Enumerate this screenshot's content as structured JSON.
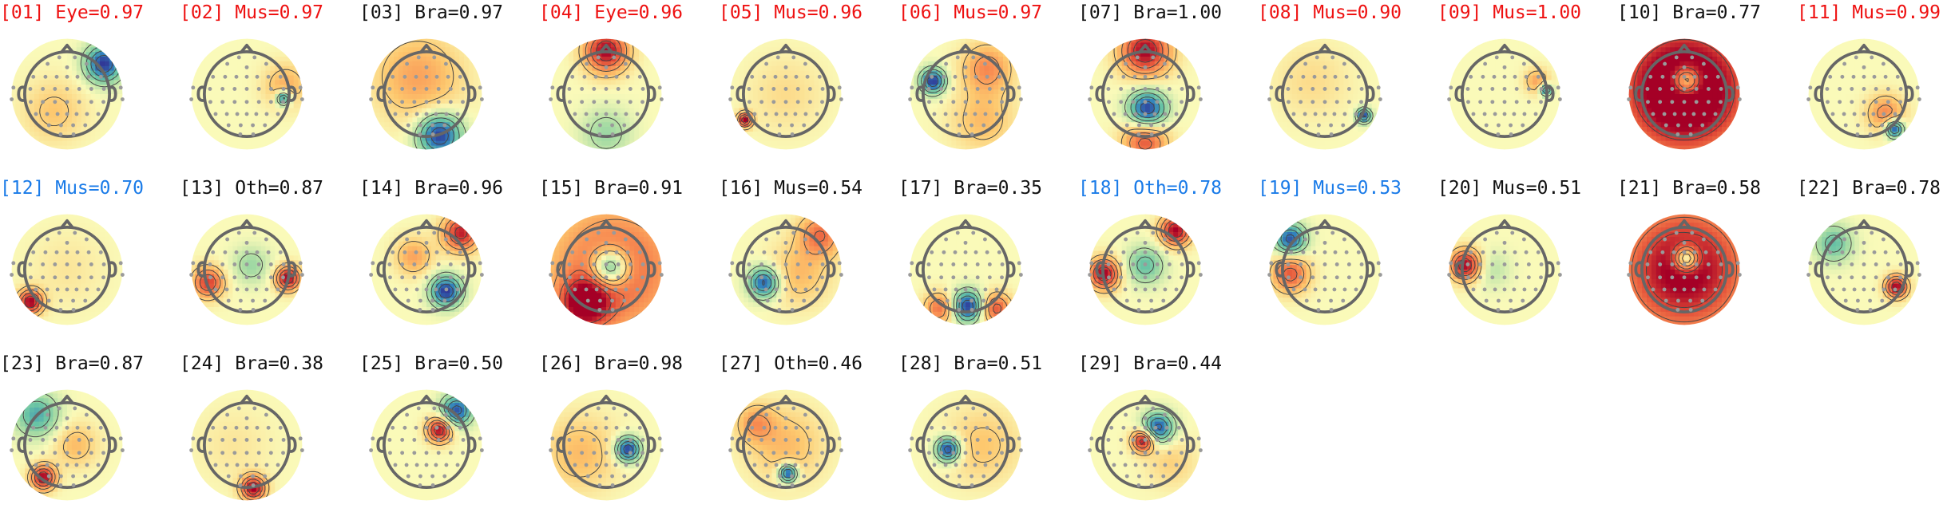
{
  "figure": {
    "components": [
      {
        "label": "[01] Eye=0.97",
        "color": "red",
        "blobs": [
          [
            0.85,
            -0.7,
            0.3,
            -1
          ],
          [
            -0.3,
            0.4,
            0.5,
            0.25
          ]
        ]
      },
      {
        "label": "[02] Mus=0.97",
        "color": "red",
        "blobs": [
          [
            0.85,
            0.1,
            0.12,
            -0.9
          ],
          [
            0.9,
            -0.2,
            0.35,
            0.35
          ]
        ]
      },
      {
        "label": "[03] Bra=0.97",
        "color": "black",
        "blobs": [
          [
            0.3,
            0.95,
            0.35,
            -1
          ],
          [
            -0.2,
            -0.4,
            0.7,
            0.4
          ]
        ]
      },
      {
        "label": "[04] Eye=0.96",
        "color": "red",
        "blobs": [
          [
            0,
            -1,
            0.35,
            1
          ],
          [
            0,
            0.9,
            0.4,
            -0.3
          ]
        ]
      },
      {
        "label": "[05] Mus=0.96",
        "color": "red",
        "blobs": [
          [
            -0.95,
            0.6,
            0.12,
            1
          ],
          [
            0,
            0,
            0.6,
            0.15
          ]
        ]
      },
      {
        "label": "[06] Mus=0.97",
        "color": "red",
        "blobs": [
          [
            -0.75,
            -0.3,
            0.2,
            -1
          ],
          [
            0.5,
            -0.6,
            0.4,
            0.5
          ],
          [
            0.4,
            0.6,
            0.5,
            0.3
          ]
        ]
      },
      {
        "label": "[07] Bra=1.00",
        "color": "black",
        "blobs": [
          [
            0.05,
            0.35,
            0.3,
            -1
          ],
          [
            0,
            -1,
            0.4,
            1
          ],
          [
            0,
            1.1,
            0.35,
            0.7
          ]
        ]
      },
      {
        "label": "[08] Mus=0.90",
        "color": "red",
        "blobs": [
          [
            0.9,
            0.5,
            0.12,
            -0.9
          ],
          [
            -0.3,
            -0.3,
            0.6,
            0.15
          ]
        ]
      },
      {
        "label": "[09] Mus=1.00",
        "color": "red",
        "blobs": [
          [
            0.95,
            -0.1,
            0.1,
            -0.8
          ],
          [
            0.75,
            -0.3,
            0.2,
            0.4
          ]
        ]
      },
      {
        "label": "[10] Bra=0.77",
        "color": "black",
        "blobs": [
          [
            0.05,
            -0.3,
            0.25,
            -1
          ],
          [
            0,
            -0.1,
            1.1,
            1.4
          ]
        ]
      },
      {
        "label": "[11] Mus=0.99",
        "color": "red",
        "blobs": [
          [
            0.7,
            0.8,
            0.15,
            -1
          ],
          [
            0.5,
            0.45,
            0.3,
            0.5
          ]
        ]
      },
      {
        "label": "[12] Mus=0.70",
        "color": "blue",
        "blobs": [
          [
            -0.85,
            0.75,
            0.2,
            1
          ],
          [
            0,
            0,
            0.6,
            0.1
          ]
        ]
      },
      {
        "label": "[13] Oth=0.87",
        "color": "black",
        "blobs": [
          [
            0.95,
            0.2,
            0.2,
            1
          ],
          [
            -0.9,
            0.3,
            0.25,
            0.8
          ],
          [
            0.1,
            -0.1,
            0.3,
            -0.3
          ]
        ]
      },
      {
        "label": "[14] Bra=0.96",
        "color": "black",
        "blobs": [
          [
            0.45,
            0.5,
            0.25,
            -1
          ],
          [
            0.8,
            -0.85,
            0.3,
            0.9
          ],
          [
            -0.3,
            -0.3,
            0.3,
            0.4
          ]
        ]
      },
      {
        "label": "[15] Bra=0.91",
        "color": "black",
        "blobs": [
          [
            0.1,
            -0.05,
            0.3,
            -1
          ],
          [
            -0.5,
            0.8,
            0.4,
            0.9
          ],
          [
            0.2,
            0,
            1.1,
            0.7
          ]
        ]
      },
      {
        "label": "[16] Mus=0.54",
        "color": "black",
        "blobs": [
          [
            -0.5,
            0.3,
            0.25,
            -0.9
          ],
          [
            0.8,
            -0.8,
            0.35,
            0.6
          ],
          [
            0.3,
            0.1,
            0.5,
            0.3
          ]
        ]
      },
      {
        "label": "[17] Bra=0.35",
        "color": "black",
        "blobs": [
          [
            0.05,
            0.85,
            0.25,
            -1
          ],
          [
            -0.6,
            0.9,
            0.25,
            0.6
          ],
          [
            0.7,
            0.9,
            0.25,
            0.7
          ]
        ]
      },
      {
        "label": "[18] Oth=0.78",
        "color": "blue",
        "blobs": [
          [
            -0.95,
            0.1,
            0.25,
            1
          ],
          [
            0.7,
            -0.9,
            0.25,
            1
          ],
          [
            0,
            -0.1,
            0.3,
            -0.5
          ]
        ]
      },
      {
        "label": "[19] Mus=0.53",
        "color": "blue",
        "blobs": [
          [
            -0.8,
            -0.7,
            0.25,
            -0.9
          ],
          [
            -0.8,
            0.1,
            0.3,
            0.7
          ]
        ]
      },
      {
        "label": "[20] Mus=0.51",
        "color": "black",
        "blobs": [
          [
            -0.9,
            -0.1,
            0.25,
            1
          ],
          [
            -0.3,
            0,
            0.3,
            -0.2
          ]
        ]
      },
      {
        "label": "[21] Bra=0.58",
        "color": "black",
        "blobs": [
          [
            0.05,
            -0.25,
            0.2,
            -1
          ],
          [
            0,
            0,
            1.1,
            1.1
          ]
        ]
      },
      {
        "label": "[22] Bra=0.78",
        "color": "black",
        "blobs": [
          [
            0.75,
            0.4,
            0.18,
            1
          ],
          [
            -0.7,
            -0.6,
            0.3,
            -0.5
          ]
        ]
      },
      {
        "label": "[23] Bra=0.87",
        "color": "black",
        "blobs": [
          [
            -0.55,
            0.75,
            0.2,
            1
          ],
          [
            -0.7,
            -0.7,
            0.35,
            -0.6
          ],
          [
            0.2,
            0,
            0.35,
            0.3
          ]
        ]
      },
      {
        "label": "[24] Bra=0.38",
        "color": "black",
        "blobs": [
          [
            0.15,
            1,
            0.2,
            1
          ],
          [
            -0.3,
            0,
            0.6,
            0.1
          ]
        ]
      },
      {
        "label": "[25] Bra=0.50",
        "color": "black",
        "blobs": [
          [
            0.3,
            -0.35,
            0.2,
            1
          ],
          [
            0.7,
            -0.8,
            0.25,
            -0.9
          ]
        ]
      },
      {
        "label": "[26] Bra=0.98",
        "color": "black",
        "blobs": [
          [
            0.5,
            0.1,
            0.2,
            -1
          ],
          [
            -0.6,
            0.2,
            0.6,
            0.3
          ]
        ]
      },
      {
        "label": "[27] Oth=0.46",
        "color": "black",
        "blobs": [
          [
            0.05,
            0.65,
            0.15,
            -1
          ],
          [
            0,
            0,
            0.6,
            0.3
          ],
          [
            -0.7,
            -0.5,
            0.3,
            0.4
          ]
        ]
      },
      {
        "label": "[28] Bra=0.51",
        "color": "black",
        "blobs": [
          [
            -0.4,
            0.1,
            0.2,
            -1
          ],
          [
            0.4,
            0,
            0.6,
            0.25
          ]
        ]
      },
      {
        "label": "[29] Bra=0.44",
        "color": "black",
        "blobs": [
          [
            -0.05,
            -0.1,
            0.18,
            1
          ],
          [
            0.3,
            -0.4,
            0.25,
            -0.9
          ],
          [
            0.6,
            0.4,
            0.4,
            0.2
          ]
        ]
      }
    ],
    "colors": {
      "red": "#ee1111",
      "black": "#111111",
      "blue": "#1a7be8",
      "head_outline": "#666666",
      "sensor": "#9a9a9a",
      "contour": "#444444"
    }
  }
}
